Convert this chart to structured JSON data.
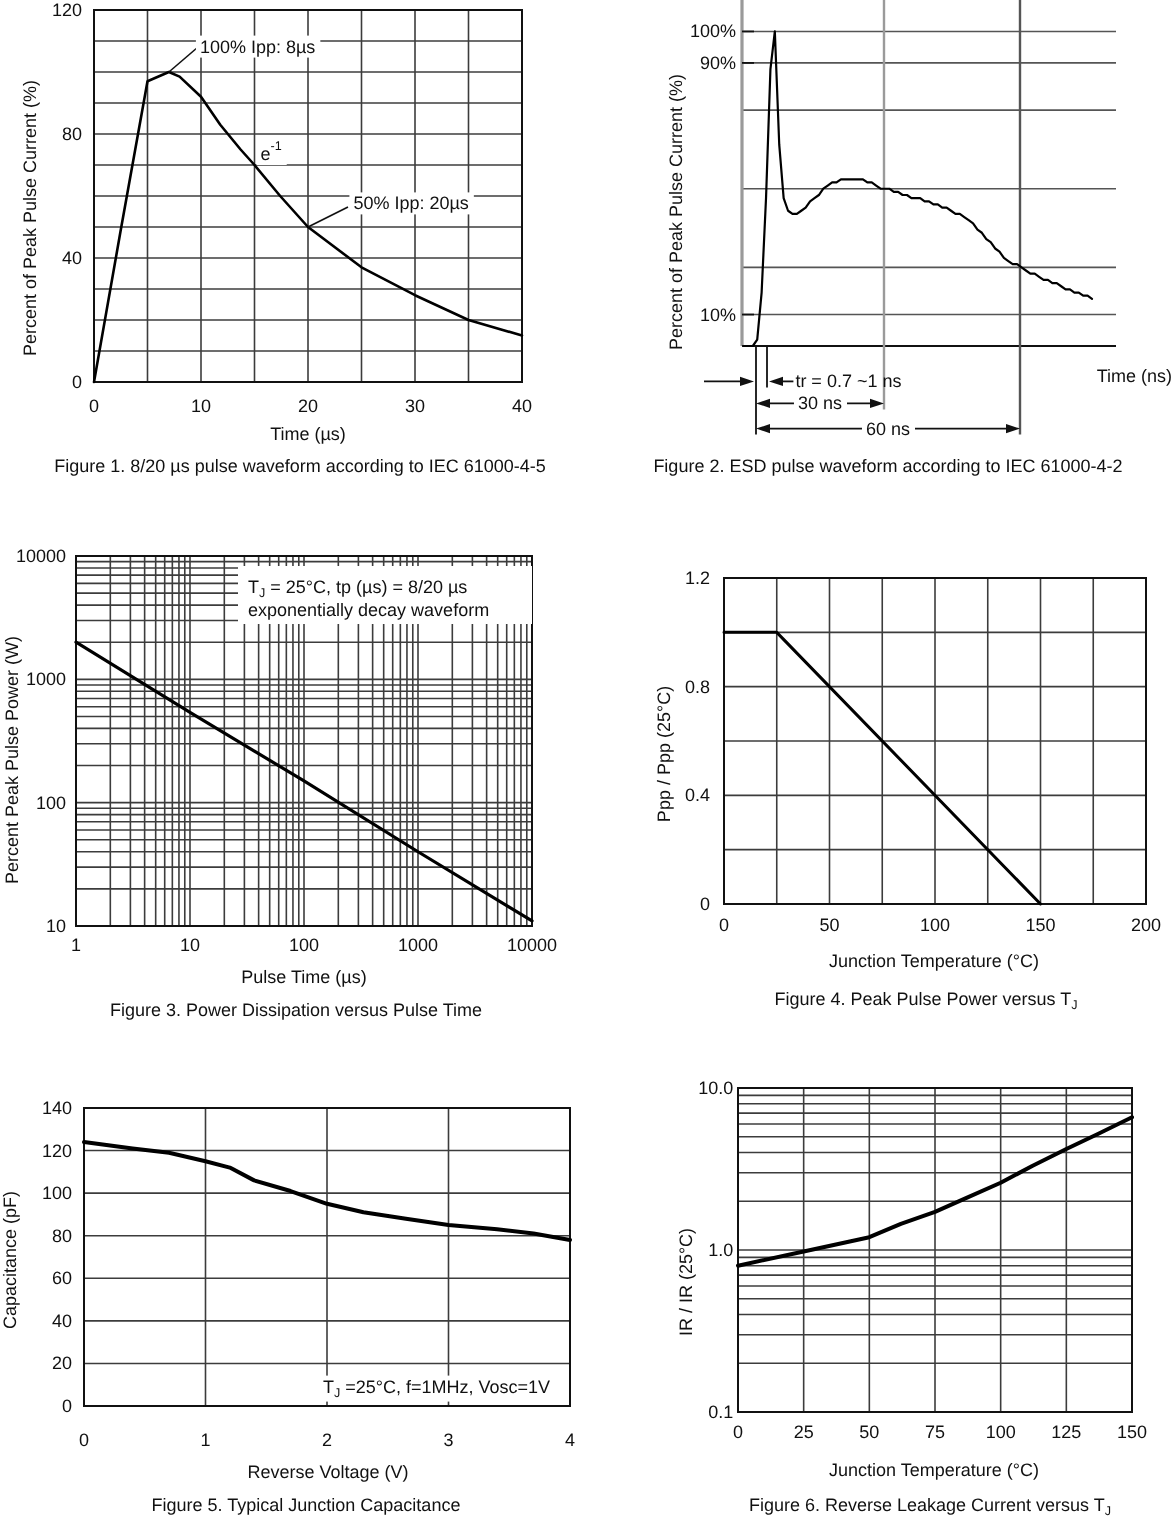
{
  "chart_data": [
    {
      "type": "line",
      "title": "Figure 1. 8/20 µs pulse waveform according to IEC 61000-4-5",
      "xlabel": "Time (µs)",
      "ylabel": "Percent of Peak Pulse Current (%)",
      "x": [
        0,
        2.5,
        5,
        7,
        8,
        10,
        11.8,
        13.7,
        15,
        17.4,
        20,
        25,
        30,
        35,
        40
      ],
      "values": [
        0,
        49,
        97,
        100,
        98.5,
        92,
        83,
        75,
        70,
        60,
        50,
        37,
        28,
        20,
        15
      ],
      "color": "#000000",
      "xlim": [
        0,
        40
      ],
      "ylim": [
        0,
        120
      ],
      "xticks": [
        0,
        {
          "value": 5,
          "label": null
        },
        10,
        {
          "value": 15,
          "label": null
        },
        20,
        {
          "value": 25,
          "label": null
        },
        30,
        {
          "value": 35,
          "label": null
        },
        40
      ],
      "yticks": [
        0,
        {
          "value": 10,
          "label": null
        },
        {
          "value": 20,
          "label": null
        },
        {
          "value": 30,
          "label": null
        },
        40,
        {
          "value": 50,
          "label": null
        },
        {
          "value": 60,
          "label": null
        },
        {
          "value": 70,
          "label": null
        },
        80,
        {
          "value": 90,
          "label": null
        },
        {
          "value": 100,
          "label": null
        },
        {
          "value": 110,
          "label": null
        },
        120
      ],
      "grid": true,
      "annotations": [
        {
          "text": "100% Ipp: 8µs",
          "x": 7,
          "y": 100
        },
        {
          "text": "e$^{-1}$",
          "x": 15,
          "y": 70
        },
        {
          "text": "50% Ipp: 20µs",
          "x": 20,
          "y": 50
        }
      ]
    },
    {
      "type": "line",
      "title": "Figure 2. ESD pulse waveform according to IEC 61000-4-2",
      "xlabel": "Time (ns)",
      "ylabel": "Percent of Peak Pulse Current (%)",
      "categories": [
        null,
        null,
        null,
        null,
        null,
        null,
        null,
        null,
        null,
        null,
        null,
        null,
        null,
        null,
        null,
        null,
        null,
        null,
        null,
        null,
        null,
        null,
        null,
        null,
        null,
        null,
        null,
        null,
        null,
        null,
        null,
        null,
        null,
        null,
        null,
        null,
        null,
        null,
        null,
        null,
        null,
        null,
        null,
        null,
        null,
        null,
        null,
        null,
        null,
        null,
        null,
        null,
        null,
        null,
        null,
        null,
        null,
        null,
        null,
        null,
        null,
        null,
        null,
        null,
        null,
        null,
        null,
        null,
        null,
        null,
        null,
        null,
        null,
        null,
        null,
        null,
        null,
        null,
        null,
        null
      ],
      "values": [
        0,
        0,
        0,
        2,
        17,
        47,
        88,
        100,
        64,
        47,
        43,
        42,
        42,
        43,
        44,
        46,
        47,
        48,
        50,
        51,
        52,
        52,
        53,
        53,
        53,
        53,
        53,
        53,
        52,
        52,
        51,
        50,
        50,
        50,
        49,
        49,
        48,
        48,
        47,
        47,
        47,
        46,
        46,
        45,
        45,
        44,
        44,
        43,
        42,
        42,
        41,
        40,
        39,
        37,
        36,
        34,
        33,
        31,
        30,
        28,
        27,
        26,
        26,
        25,
        24,
        23,
        23,
        22,
        21,
        21,
        20,
        20,
        19,
        18,
        18,
        17,
        17,
        16,
        16,
        15
      ],
      "color": "#000000",
      "ylim": [
        0,
        110
      ],
      "yticks": [
        {
          "value": 0,
          "label": null
        },
        {
          "value": 10,
          "label": "10%"
        },
        {
          "value": 25,
          "label": null
        },
        {
          "value": 50,
          "label": null
        },
        {
          "value": 75,
          "label": null
        },
        {
          "value": 90,
          "label": "90%"
        },
        {
          "value": 100,
          "label": "100%"
        }
      ],
      "tick_labels": "y",
      "grid": "y",
      "ref_lines": [
        {
          "axis": "x",
          "label": "30 ns",
          "color": "#9a9a9a"
        },
        {
          "axis": "x",
          "label": "60 ns",
          "color": "#555555"
        }
      ],
      "annotations": [
        "tr = 0.7 ~1 ns"
      ]
    },
    {
      "type": "line",
      "title": "Figure 3. Power Dissipation versus Pulse Time",
      "xlabel": "Pulse Time (µs)",
      "ylabel": "Percent Peak Pulse Power (W)",
      "x": [
        1,
        10,
        100,
        1000,
        10000
      ],
      "values": [
        2000,
        540,
        150,
        40,
        11
      ],
      "color": "#000000",
      "log": "xy",
      "xlim": [
        1,
        10000
      ],
      "ylim": [
        10,
        10000
      ],
      "xticks": [
        1,
        {
          "value": 2,
          "label": null
        },
        {
          "value": 3,
          "label": null
        },
        {
          "value": 4,
          "label": null
        },
        {
          "value": 5,
          "label": null
        },
        {
          "value": 6,
          "label": null
        },
        {
          "value": 7,
          "label": null
        },
        {
          "value": 8,
          "label": null
        },
        {
          "value": 9,
          "label": null
        },
        10,
        {
          "value": 20,
          "label": null
        },
        {
          "value": 30,
          "label": null
        },
        {
          "value": 40,
          "label": null
        },
        {
          "value": 50,
          "label": null
        },
        {
          "value": 60,
          "label": null
        },
        {
          "value": 70,
          "label": null
        },
        {
          "value": 80,
          "label": null
        },
        {
          "value": 90,
          "label": null
        },
        100,
        {
          "value": 200,
          "label": null
        },
        {
          "value": 300,
          "label": null
        },
        {
          "value": 400,
          "label": null
        },
        {
          "value": 500,
          "label": null
        },
        {
          "value": 600,
          "label": null
        },
        {
          "value": 700,
          "label": null
        },
        {
          "value": 800,
          "label": null
        },
        {
          "value": 900,
          "label": null
        },
        1000,
        {
          "value": 2000,
          "label": null
        },
        {
          "value": 3000,
          "label": null
        },
        {
          "value": 4000,
          "label": null
        },
        {
          "value": 5000,
          "label": null
        },
        {
          "value": 6000,
          "label": null
        },
        {
          "value": 7000,
          "label": null
        },
        {
          "value": 8000,
          "label": null
        },
        {
          "value": 9000,
          "label": null
        },
        10000
      ],
      "yticks": [
        10,
        {
          "value": 20,
          "label": null
        },
        {
          "value": 30,
          "label": null
        },
        {
          "value": 40,
          "label": null
        },
        {
          "value": 50,
          "label": null
        },
        {
          "value": 60,
          "label": null
        },
        {
          "value": 70,
          "label": null
        },
        {
          "value": 80,
          "label": null
        },
        {
          "value": 90,
          "label": null
        },
        100,
        {
          "value": 200,
          "label": null
        },
        {
          "value": 300,
          "label": null
        },
        {
          "value": 400,
          "label": null
        },
        {
          "value": 500,
          "label": null
        },
        {
          "value": 600,
          "label": null
        },
        {
          "value": 700,
          "label": null
        },
        {
          "value": 800,
          "label": null
        },
        {
          "value": 900,
          "label": null
        },
        1000,
        {
          "value": 2000,
          "label": null
        },
        {
          "value": 3000,
          "label": null
        },
        {
          "value": 4000,
          "label": null
        },
        {
          "value": 5000,
          "label": null
        },
        {
          "value": 6000,
          "label": null
        },
        {
          "value": 7000,
          "label": null
        },
        {
          "value": 8000,
          "label": null
        },
        {
          "value": 9000,
          "label": null
        },
        10000
      ],
      "grid": true,
      "annotations": [
        "T$_{J}$ = 25°C, tp (µs) = 8/20 µs",
        "exponentially decay waveform"
      ]
    },
    {
      "type": "line",
      "title": "Figure 4. Peak Pulse Power versus T$_{J}$",
      "xlabel": "Junction Temperature (°C)",
      "ylabel": "Ppp / Ppp (25°C)",
      "x": [
        0,
        25,
        150
      ],
      "values": [
        1,
        1,
        0
      ],
      "color": "#000000",
      "xlim": [
        0,
        200
      ],
      "ylim": [
        0,
        1.2
      ],
      "xticks": [
        0,
        {
          "value": 25,
          "label": null
        },
        50,
        {
          "value": 75,
          "label": null
        },
        100,
        {
          "value": 125,
          "label": null
        },
        150,
        {
          "value": 175,
          "label": null
        },
        200
      ],
      "yticks": [
        0,
        {
          "value": 0.2,
          "label": null
        },
        0.4,
        {
          "value": 0.6,
          "label": null
        },
        0.8,
        {
          "value": 1,
          "label": null
        },
        1.2
      ],
      "grid": true
    },
    {
      "type": "line",
      "title": "Figure 5. Typical Junction Capacitance",
      "xlabel": "Reverse Voltage (V)",
      "ylabel": "Capacitance (pF)",
      "x": [
        0,
        0.4,
        0.7,
        1,
        1.2,
        1.4,
        1.7,
        2,
        2.3,
        2.65,
        3,
        3.4,
        3.7,
        4
      ],
      "values": [
        124,
        121,
        119,
        115,
        112,
        106,
        101,
        95,
        91,
        88,
        85,
        83,
        81,
        78
      ],
      "color": "#000000",
      "xlim": [
        0,
        4
      ],
      "ylim": [
        0,
        140
      ],
      "xticks": [
        0,
        1,
        2,
        3,
        4
      ],
      "yticks": [
        0,
        20,
        40,
        60,
        80,
        100,
        120,
        140
      ],
      "grid": true,
      "annotations": [
        "T$_{J}$ =25°C, f=1MHz, Vosc=1V"
      ]
    },
    {
      "type": "line",
      "title": "Figure 6. Reverse Leakage Current versus T$_{J}$",
      "xlabel": "Junction Temperature (°C)",
      "ylabel": "IR / IR (25°C)",
      "x": [
        0,
        25,
        50,
        62,
        75,
        87,
        100,
        112,
        125,
        137,
        150
      ],
      "values": [
        0.8,
        0.98,
        1.2,
        1.45,
        1.72,
        2.1,
        2.6,
        3.3,
        4.2,
        5.2,
        6.6
      ],
      "color": "#000000",
      "log": "y",
      "xlim": [
        0,
        150
      ],
      "ylim": [
        0.1,
        10
      ],
      "xticks": [
        0,
        25,
        50,
        75,
        100,
        125,
        150
      ],
      "yticks": [
        0.1,
        {
          "value": 0.2,
          "label": null
        },
        {
          "value": 0.3,
          "label": null
        },
        {
          "value": 0.4,
          "label": null
        },
        {
          "value": 0.5,
          "label": null
        },
        {
          "value": 0.6,
          "label": null
        },
        {
          "value": 0.7,
          "label": null
        },
        {
          "value": 0.8,
          "label": null
        },
        {
          "value": 0.9,
          "label": null
        },
        {
          "value": 1,
          "label": "1.0"
        },
        {
          "value": 2,
          "label": null
        },
        {
          "value": 3,
          "label": null
        },
        {
          "value": 4,
          "label": null
        },
        {
          "value": 5,
          "label": null
        },
        {
          "value": 6,
          "label": null
        },
        {
          "value": 7,
          "label": null
        },
        {
          "value": 8,
          "label": null
        },
        {
          "value": 9,
          "label": null
        },
        {
          "value": 10,
          "label": "10.0"
        }
      ],
      "grid": true
    }
  ]
}
